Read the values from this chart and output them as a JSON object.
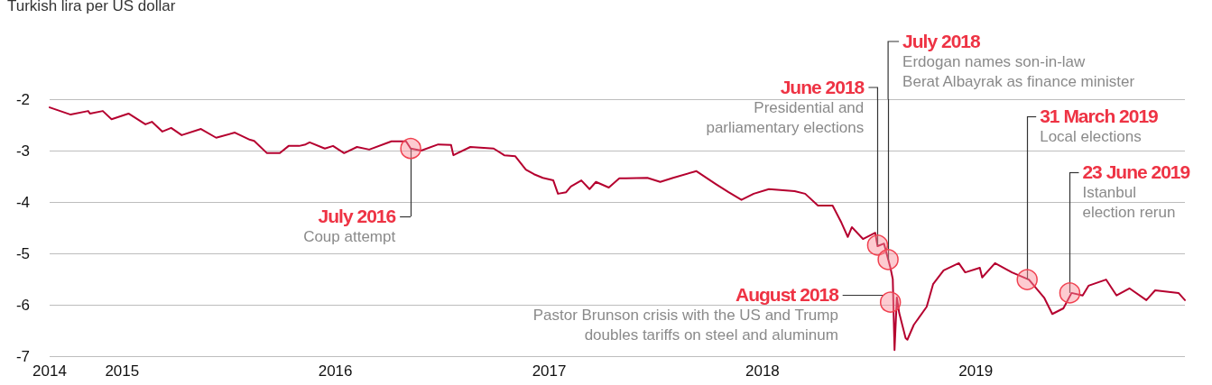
{
  "chart_data": {
    "type": "line",
    "ylabel": "Turkish lira per US dollar",
    "x": [
      "2014-08-30",
      "2014-10-05",
      "2014-11-04",
      "2014-11-07",
      "2014-11-29",
      "2014-12-14",
      "2015-01-12",
      "2015-02-10",
      "2015-02-21",
      "2015-03-11",
      "2015-03-26",
      "2015-04-13",
      "2015-05-16",
      "2015-06-11",
      "2015-07-13",
      "2015-08-08",
      "2015-08-15",
      "2015-09-06",
      "2015-09-28",
      "2015-10-13",
      "2015-10-31",
      "2015-11-11",
      "2015-11-18",
      "2015-12-14",
      "2015-12-28",
      "2016-01-16",
      "2016-02-07",
      "2016-02-28",
      "2016-04-06",
      "2016-05-01",
      "2016-05-09",
      "2016-05-27",
      "2016-06-25",
      "2016-07-17",
      "2016-07-21",
      "2016-08-19",
      "2016-09-28",
      "2016-10-16",
      "2016-11-04",
      "2016-11-22",
      "2016-12-06",
      "2016-12-21",
      "2017-01-08",
      "2017-01-16",
      "2017-01-30",
      "2017-02-07",
      "2017-02-25",
      "2017-03-11",
      "2017-03-22",
      "2017-04-13",
      "2017-05-01",
      "2017-05-12",
      "2017-06-18",
      "2017-07-10",
      "2017-08-01",
      "2017-09-10",
      "2017-10-13",
      "2017-11-04",
      "2017-11-26",
      "2017-12-17",
      "2018-01-12",
      "2018-02-25",
      "2018-03-15",
      "2018-04-06",
      "2018-05-01",
      "2018-05-16",
      "2018-05-27",
      "2018-06-03",
      "2018-06-22",
      "2018-07-13",
      "2018-07-17",
      "2018-07-28",
      "2018-08-08",
      "2018-08-12",
      "2018-08-15",
      "2018-08-19",
      "2018-08-23",
      "2018-09-03",
      "2018-09-06",
      "2018-09-17",
      "2018-10-09",
      "2018-10-20",
      "2018-11-07",
      "2018-12-03",
      "2018-12-14",
      "2019-01-08",
      "2019-01-12",
      "2019-02-03",
      "2019-03-04",
      "2019-04-02",
      "2019-04-28",
      "2019-05-12",
      "2019-05-31",
      "2019-06-14",
      "2019-07-03",
      "2019-07-13",
      "2019-08-12",
      "2019-08-30",
      "2019-09-21",
      "2019-10-20",
      "2019-11-04",
      "2019-12-14",
      "2019-12-25"
    ],
    "series": [
      {
        "color": "#b5002f",
        "values": [
          -2.16,
          -2.3,
          -2.23,
          -2.28,
          -2.23,
          -2.39,
          -2.28,
          -2.49,
          -2.44,
          -2.63,
          -2.56,
          -2.7,
          -2.58,
          -2.75,
          -2.65,
          -2.79,
          -2.81,
          -3.05,
          -3.05,
          -2.91,
          -2.91,
          -2.88,
          -2.84,
          -2.96,
          -2.91,
          -3.05,
          -2.93,
          -2.98,
          -2.82,
          -2.82,
          -2.96,
          -3.0,
          -2.88,
          -2.89,
          -3.09,
          -2.93,
          -2.96,
          -3.09,
          -3.11,
          -3.37,
          -3.46,
          -3.53,
          -3.58,
          -3.84,
          -3.81,
          -3.7,
          -3.58,
          -3.75,
          -3.61,
          -3.72,
          -3.54,
          -3.54,
          -3.53,
          -3.61,
          -3.53,
          -3.4,
          -3.65,
          -3.81,
          -3.96,
          -3.84,
          -3.75,
          -3.79,
          -3.84,
          -4.07,
          -4.07,
          -4.4,
          -4.68,
          -4.49,
          -4.72,
          -4.6,
          -4.86,
          -4.81,
          -5.28,
          -5.5,
          -6.88,
          -5.86,
          -6.16,
          -6.65,
          -6.68,
          -6.39,
          -6.04,
          -5.6,
          -5.33,
          -5.19,
          -5.37,
          -5.28,
          -5.47,
          -5.19,
          -5.37,
          -5.51,
          -5.86,
          -6.18,
          -6.07,
          -5.77,
          -5.82,
          -5.63,
          -5.51,
          -5.82,
          -5.68,
          -5.91,
          -5.72,
          -5.77,
          -5.91
        ]
      }
    ],
    "xlim": [
      "2014-08-30",
      "2019-12-25"
    ],
    "xticks": [
      {
        "value": "2014-08-30",
        "label": "2014"
      },
      "2015",
      "2016",
      "2017",
      "2018",
      "2019"
    ],
    "ylim": [
      -7,
      -2
    ],
    "yticks": [
      -7,
      -6,
      -5,
      -4,
      -3,
      -2
    ],
    "grid": "y",
    "marker": "none",
    "annotations": [
      {
        "text": "July 2016\nCoup attempt",
        "x": "2016-05-09",
        "y": -2.96
      },
      {
        "text": "June 2018\nPresidential and\nparliamentary elections",
        "x": "2018-07-17",
        "y": -4.84
      },
      {
        "text": "July 2018\nErdogan names son-in-law\nBerat Albayrak as finance minister",
        "x": "2018-08-04",
        "y": -5.12
      },
      {
        "text": "August 2018\nPastor Brunson crisis with the US and Trump\ndoubles tariffs on steel and aluminum",
        "x": "2018-08-08",
        "y": -5.95
      },
      {
        "text": "31 March 2019\nLocal elections",
        "x": "2019-03-30",
        "y": -5.51
      },
      {
        "text": "23 June 2019\nIstanbul\nelection rerun",
        "x": "2019-06-11",
        "y": -5.77
      }
    ]
  }
}
